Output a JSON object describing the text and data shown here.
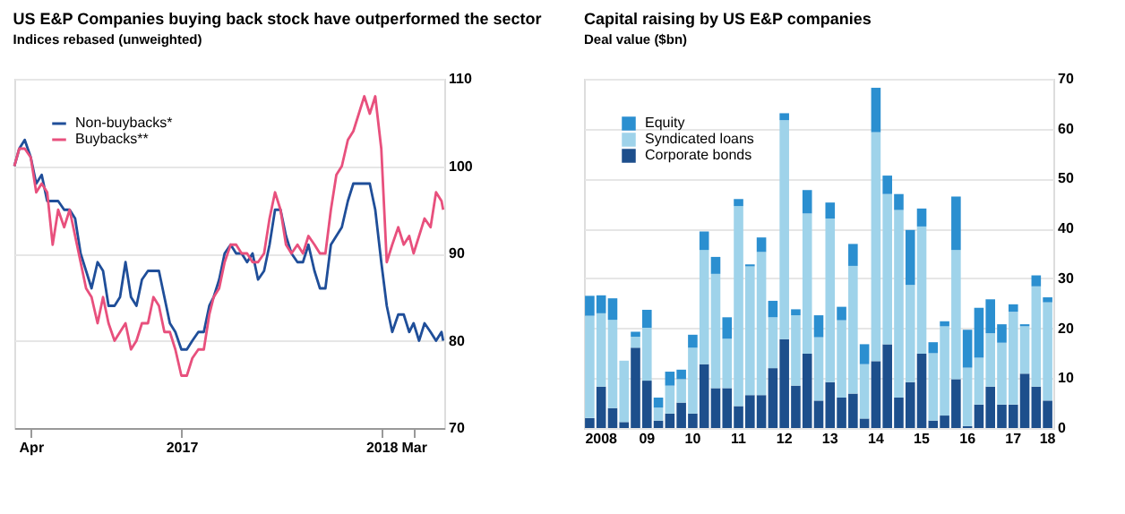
{
  "chart_data": [
    {
      "type": "line",
      "title": "US E&P Companies buying back stock have outperformed the sector",
      "subtitle": "Indices rebased (unweighted)",
      "x": [
        "2016-03-02",
        "2016-03-11",
        "2016-03-21",
        "2016-04-01",
        "2016-04-11",
        "2016-04-21",
        "2016-05-01",
        "2016-05-11",
        "2016-05-21",
        "2016-06-01",
        "2016-06-11",
        "2016-06-21",
        "2016-07-01",
        "2016-07-11",
        "2016-07-21",
        "2016-08-01",
        "2016-08-11",
        "2016-08-21",
        "2016-09-01",
        "2016-09-11",
        "2016-09-21",
        "2016-10-01",
        "2016-10-11",
        "2016-10-21",
        "2016-11-01",
        "2016-11-11",
        "2016-11-21",
        "2016-12-01",
        "2016-12-11",
        "2016-12-21",
        "2017-01-01",
        "2017-01-11",
        "2017-01-21",
        "2017-02-01",
        "2017-02-11",
        "2017-02-21",
        "2017-03-01",
        "2017-03-11",
        "2017-03-21",
        "2017-04-01",
        "2017-04-11",
        "2017-04-21",
        "2017-05-01",
        "2017-05-11",
        "2017-05-21",
        "2017-06-01",
        "2017-06-11",
        "2017-06-21",
        "2017-07-01",
        "2017-07-11",
        "2017-07-21",
        "2017-08-01",
        "2017-08-11",
        "2017-08-21",
        "2017-09-01",
        "2017-09-11",
        "2017-09-21",
        "2017-10-01",
        "2017-10-11",
        "2017-10-21",
        "2017-11-01",
        "2017-11-11",
        "2017-11-21",
        "2017-12-01",
        "2017-12-11",
        "2017-12-21",
        "2018-01-01",
        "2018-01-11",
        "2018-01-21",
        "2018-02-01",
        "2018-02-11",
        "2018-02-21",
        "2018-03-01",
        "2018-03-11",
        "2018-03-21",
        "2018-04-01",
        "2018-04-11",
        "2018-04-21",
        "2018-04-24"
      ],
      "series": [
        {
          "name": "Non-buybacks*",
          "color": "#1f4e99",
          "values": [
            100,
            102,
            103,
            101,
            98,
            99,
            96,
            96,
            96,
            95,
            95,
            94,
            90,
            88,
            86,
            89,
            88,
            84,
            84,
            85,
            89,
            85,
            84,
            87,
            88,
            88,
            88,
            85,
            82,
            81,
            79,
            79,
            80,
            81,
            81,
            84,
            85,
            87,
            90,
            91,
            90,
            90,
            89,
            90,
            87,
            88,
            91,
            95,
            95,
            92,
            90,
            89,
            89,
            91,
            88,
            86,
            86,
            91,
            92,
            93,
            96,
            98,
            98,
            98,
            98,
            95,
            89,
            84,
            81,
            83,
            83,
            81,
            82,
            80,
            82,
            81,
            80,
            81,
            80
          ]
        },
        {
          "name": "Buybacks**",
          "color": "#e8507d",
          "values": [
            100,
            102,
            102,
            101,
            97,
            98,
            97,
            91,
            95,
            93,
            95,
            92,
            89,
            86,
            85,
            82,
            85,
            82,
            80,
            81,
            82,
            79,
            80,
            82,
            82,
            85,
            84,
            81,
            81,
            79,
            76,
            76,
            78,
            79,
            79,
            83,
            85,
            86,
            89,
            91,
            91,
            90,
            90,
            89,
            89,
            90,
            94,
            97,
            95,
            91,
            90,
            91,
            90,
            92,
            91,
            90,
            90,
            95,
            99,
            100,
            103,
            104,
            106,
            108,
            106,
            108,
            102,
            89,
            91,
            93,
            91,
            92,
            90,
            92,
            94,
            93,
            97,
            96,
            95
          ]
        }
      ],
      "xlim": [
        "2016-03-02",
        "2018-04-26"
      ],
      "xticks": [
        {
          "value": "2016-04-01",
          "label": "Apr"
        },
        {
          "value": "2017-01-01",
          "label": "2017"
        },
        {
          "value": "2018-01-01",
          "label": "2018"
        },
        {
          "value": "2018-03-01",
          "label": "Mar"
        }
      ],
      "ylim": [
        70,
        110
      ],
      "yticks": [
        70,
        80,
        90,
        100,
        110
      ],
      "grid": "y",
      "legend": "top left",
      "line_style": "solid"
    },
    {
      "type": "bar",
      "stacked": true,
      "title": "Capital raising by US E&P companies",
      "subtitle": "Deal value ($bn)",
      "categories": [
        null,
        "2008",
        null,
        null,
        null,
        "09",
        null,
        null,
        null,
        "10",
        null,
        null,
        null,
        "11",
        null,
        null,
        null,
        "12",
        null,
        null,
        null,
        "13",
        null,
        null,
        null,
        "14",
        null,
        null,
        null,
        "15",
        null,
        null,
        null,
        "16",
        null,
        null,
        null,
        "17",
        null,
        null,
        "18"
      ],
      "series": [
        {
          "name": "Corporate bonds",
          "color": "#1d4f8c",
          "values": [
            2,
            8.3,
            4,
            1.2,
            16.1,
            9.5,
            1.5,
            2.9,
            5.1,
            2.9,
            12.8,
            8,
            8,
            4.4,
            6.6,
            6.6,
            12,
            17.8,
            8.5,
            14.9,
            5.5,
            9.2,
            6.1,
            6.9,
            1.9,
            13.4,
            16.8,
            6.1,
            9.2,
            14.9,
            1.5,
            2.5,
            9.8,
            0.4,
            4.7,
            8.3,
            4.7,
            4.7,
            10.9,
            8.3,
            5.5
          ]
        },
        {
          "name": "Syndicated loans",
          "color": "#9fd3ea",
          "values": [
            20.5,
            14.7,
            17.7,
            12.3,
            2.2,
            10.6,
            2.6,
            5.6,
            4.7,
            13.2,
            22.9,
            22.9,
            9.9,
            40.1,
            25.8,
            28.7,
            10.2,
            43.9,
            14.1,
            28.1,
            12.7,
            32.8,
            15.5,
            25.6,
            10.9,
            45.9,
            30.1,
            37.6,
            19.5,
            25.5,
            13.5,
            17.9,
            25.9,
            11.7,
            9.4,
            10.7,
            12.4,
            18.6,
            9.5,
            20.1,
            19.7
          ]
        },
        {
          "name": "Equity",
          "color": "#2b8fd0",
          "values": [
            4,
            3.6,
            4.3,
            0,
            1,
            3.6,
            2,
            2.8,
            1.9,
            2.6,
            3.7,
            3.4,
            4.3,
            1.4,
            0.4,
            2.9,
            3.3,
            1.4,
            1.2,
            4.7,
            4.4,
            3.2,
            2.7,
            4.4,
            4,
            8.9,
            3.7,
            3.2,
            11,
            3.6,
            2.2,
            1,
            10.7,
            7.6,
            10,
            6.8,
            3.7,
            1.5,
            0.4,
            2.2,
            1
          ]
        }
      ],
      "ylim": [
        0,
        70
      ],
      "yticks": [
        0,
        10,
        20,
        30,
        40,
        50,
        60,
        70
      ],
      "grid": "y",
      "legend": "top left"
    }
  ]
}
